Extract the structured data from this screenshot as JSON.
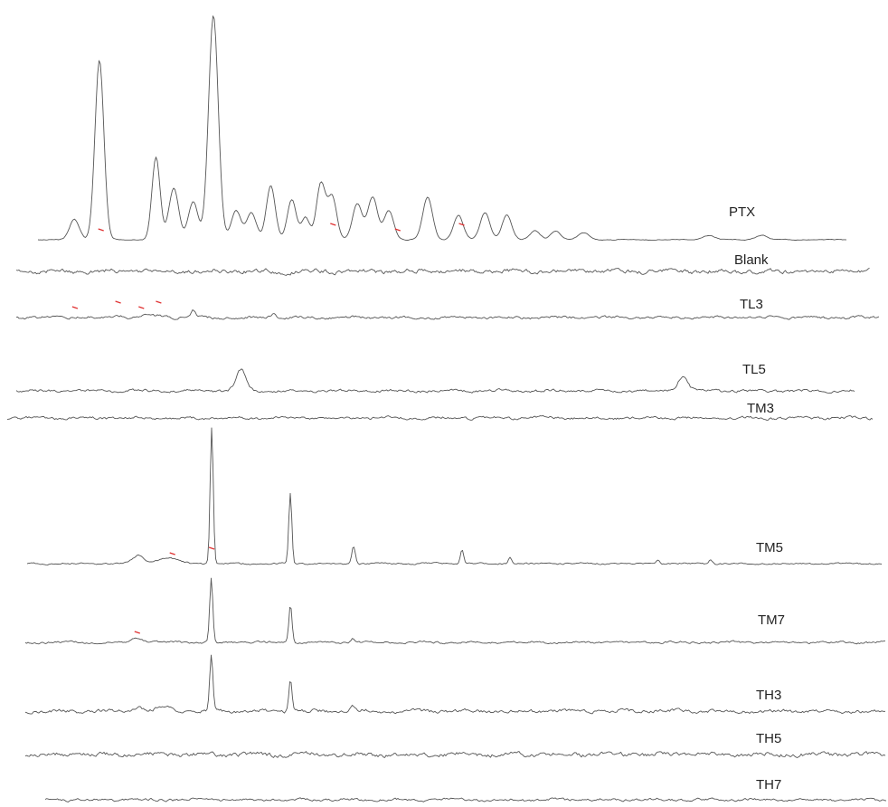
{
  "chart_data": {
    "type": "line",
    "title": "",
    "xlabel": "",
    "ylabel": "",
    "grid": false,
    "legend": "none",
    "trace_color": "#555555",
    "marker_color": "#e03030",
    "series": [
      {
        "name": "PTX",
        "x_range": [
          0,
          100
        ],
        "baseline_amplitude": 0.3,
        "peaks": [
          {
            "x": 4.5,
            "height": 9,
            "width": 0.6
          },
          {
            "x": 7.6,
            "height": 80,
            "width": 0.55
          },
          {
            "x": 14.6,
            "height": 37,
            "width": 0.5
          },
          {
            "x": 16.8,
            "height": 23,
            "width": 0.6
          },
          {
            "x": 19.2,
            "height": 17,
            "width": 0.6
          },
          {
            "x": 21.7,
            "height": 100,
            "width": 0.6
          },
          {
            "x": 24.5,
            "height": 13,
            "width": 0.6
          },
          {
            "x": 26.4,
            "height": 12,
            "width": 0.6
          },
          {
            "x": 28.8,
            "height": 24,
            "width": 0.55
          },
          {
            "x": 31.4,
            "height": 18,
            "width": 0.55
          },
          {
            "x": 33.1,
            "height": 10,
            "width": 0.5
          },
          {
            "x": 35.0,
            "height": 25,
            "width": 0.55
          },
          {
            "x": 36.4,
            "height": 19,
            "width": 0.55
          },
          {
            "x": 39.5,
            "height": 16,
            "width": 0.6
          },
          {
            "x": 41.4,
            "height": 19,
            "width": 0.6
          },
          {
            "x": 43.4,
            "height": 13,
            "width": 0.6
          },
          {
            "x": 48.2,
            "height": 19,
            "width": 0.6
          },
          {
            "x": 52.0,
            "height": 11,
            "width": 0.6
          },
          {
            "x": 55.3,
            "height": 12,
            "width": 0.6
          },
          {
            "x": 58.0,
            "height": 11,
            "width": 0.6
          },
          {
            "x": 61.5,
            "height": 4,
            "width": 0.6
          },
          {
            "x": 64.0,
            "height": 4,
            "width": 0.6
          },
          {
            "x": 67.5,
            "height": 3,
            "width": 0.7
          },
          {
            "x": 83.0,
            "height": 2,
            "width": 0.7
          },
          {
            "x": 89.5,
            "height": 2,
            "width": 0.7
          }
        ]
      },
      {
        "name": "Blank",
        "x_range": [
          0,
          100
        ],
        "baseline_amplitude": 1.6,
        "peaks": [
          {
            "x": 12.5,
            "height": 3,
            "width": 0.8
          },
          {
            "x": 15.0,
            "height": 3,
            "width": 0.8
          }
        ]
      },
      {
        "name": "TL3",
        "x_range": [
          0,
          100
        ],
        "baseline_amplitude": 1.0,
        "peaks": [
          {
            "x": 7.0,
            "height": 3,
            "width": 0.6
          },
          {
            "x": 11.8,
            "height": 6,
            "width": 0.6
          },
          {
            "x": 14.5,
            "height": 4,
            "width": 0.8
          },
          {
            "x": 16.5,
            "height": 4,
            "width": 0.8
          },
          {
            "x": 20.5,
            "height": 18,
            "width": 0.25
          },
          {
            "x": 29.8,
            "height": 10,
            "width": 0.3
          }
        ]
      },
      {
        "name": "TL5",
        "x_range": [
          0,
          100
        ],
        "baseline_amplitude": 1.0,
        "peaks": [
          {
            "x": 26.8,
            "height": 30,
            "width": 0.6
          },
          {
            "x": 79.5,
            "height": 21,
            "width": 0.6
          }
        ]
      },
      {
        "name": "TM3",
        "x_range": [
          0,
          100
        ],
        "baseline_amplitude": 1.0,
        "peaks": []
      },
      {
        "name": "TM5",
        "x_range": [
          0,
          100
        ],
        "baseline_amplitude": 0.6,
        "peaks": [
          {
            "x": 13.0,
            "height": 6,
            "width": 0.6
          },
          {
            "x": 16.5,
            "height": 4,
            "width": 1.2
          },
          {
            "x": 21.6,
            "height": 100,
            "width": 0.18
          },
          {
            "x": 30.8,
            "height": 52,
            "width": 0.18
          },
          {
            "x": 38.2,
            "height": 13,
            "width": 0.2
          },
          {
            "x": 50.9,
            "height": 11,
            "width": 0.2
          },
          {
            "x": 56.5,
            "height": 5,
            "width": 0.2
          },
          {
            "x": 73.8,
            "height": 3,
            "width": 0.2
          },
          {
            "x": 80.0,
            "height": 3,
            "width": 0.2
          }
        ]
      },
      {
        "name": "TM7",
        "x_range": [
          0,
          100
        ],
        "baseline_amplitude": 0.8,
        "peaks": [
          {
            "x": 13.0,
            "height": 8,
            "width": 0.6
          },
          {
            "x": 21.6,
            "height": 100,
            "width": 0.18
          },
          {
            "x": 30.8,
            "height": 60,
            "width": 0.18
          },
          {
            "x": 38.0,
            "height": 6,
            "width": 0.2
          }
        ]
      },
      {
        "name": "TH3",
        "x_range": [
          0,
          100
        ],
        "baseline_amplitude": 1.3,
        "peaks": [
          {
            "x": 13.0,
            "height": 8,
            "width": 0.6
          },
          {
            "x": 16.0,
            "height": 7,
            "width": 0.8
          },
          {
            "x": 21.6,
            "height": 100,
            "width": 0.18
          },
          {
            "x": 30.8,
            "height": 60,
            "width": 0.18
          },
          {
            "x": 38.0,
            "height": 8,
            "width": 0.2
          }
        ]
      },
      {
        "name": "TH5",
        "x_range": [
          0,
          100
        ],
        "baseline_amplitude": 1.6,
        "peaks": [
          {
            "x": 13.0,
            "height": 4,
            "width": 0.6
          }
        ]
      },
      {
        "name": "TH7",
        "x_range": [
          0,
          100
        ],
        "baseline_amplitude": 1.0,
        "peaks": []
      }
    ]
  }
}
